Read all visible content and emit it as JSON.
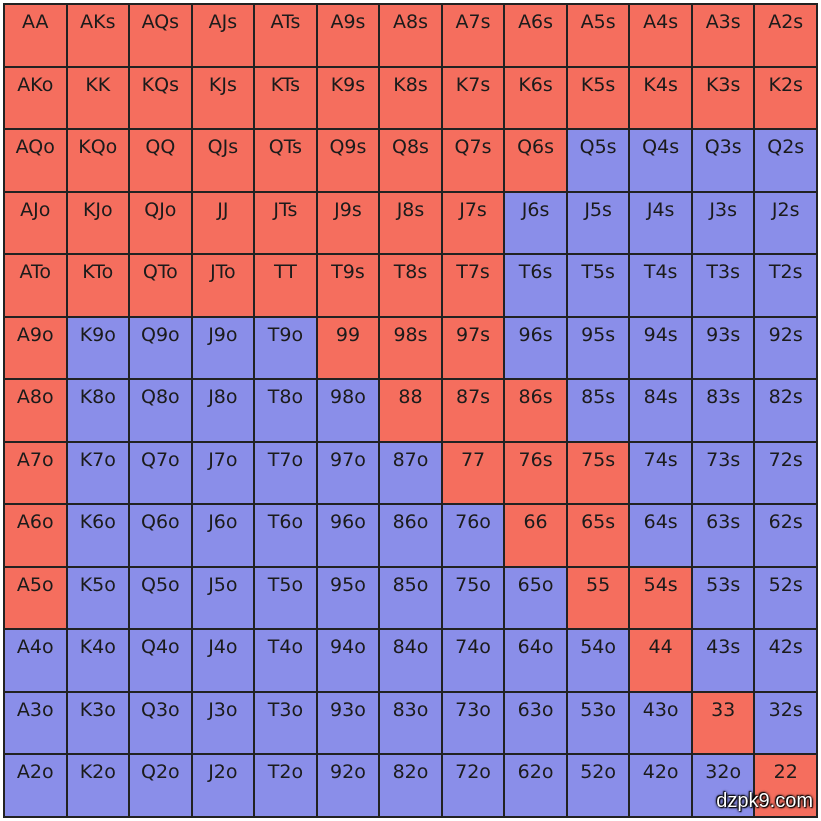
{
  "colors": {
    "raise": "#f56e5e",
    "fold": "#8a8ee9"
  },
  "ranks": [
    "A",
    "K",
    "Q",
    "J",
    "T",
    "9",
    "8",
    "7",
    "6",
    "5",
    "4",
    "3",
    "2"
  ],
  "highlighted_cells": [
    [
      "AA",
      "AKs",
      "AQs",
      "AJs",
      "ATs",
      "A9s",
      "A8s",
      "A7s",
      "A6s",
      "A5s",
      "A4s",
      "A3s",
      "A2s"
    ],
    [
      "AKo",
      "KK",
      "KQs",
      "KJs",
      "KTs",
      "K9s",
      "K8s",
      "K7s",
      "K6s",
      "K5s",
      "K4s",
      "K3s",
      "K2s"
    ],
    [
      "AQo",
      "KQo",
      "QQ",
      "QJs",
      "QTs",
      "Q9s",
      "Q8s",
      "Q7s",
      "Q6s"
    ],
    [
      "AJo",
      "KJo",
      "QJo",
      "JJ",
      "JTs",
      "J9s",
      "J8s",
      "J7s"
    ],
    [
      "ATo",
      "KTo",
      "QTo",
      "JTo",
      "TT",
      "T9s",
      "T8s",
      "T7s"
    ],
    [
      "A9o",
      "99",
      "98s",
      "97s"
    ],
    [
      "A8o",
      "88",
      "87s",
      "86s"
    ],
    [
      "A7o",
      "77",
      "76s",
      "75s"
    ],
    [
      "A6o",
      "66",
      "65s"
    ],
    [
      "A5o",
      "55",
      "54s"
    ],
    [
      "44"
    ],
    [
      "33"
    ],
    [
      "22"
    ]
  ],
  "watermark": "dzpk9.com"
}
